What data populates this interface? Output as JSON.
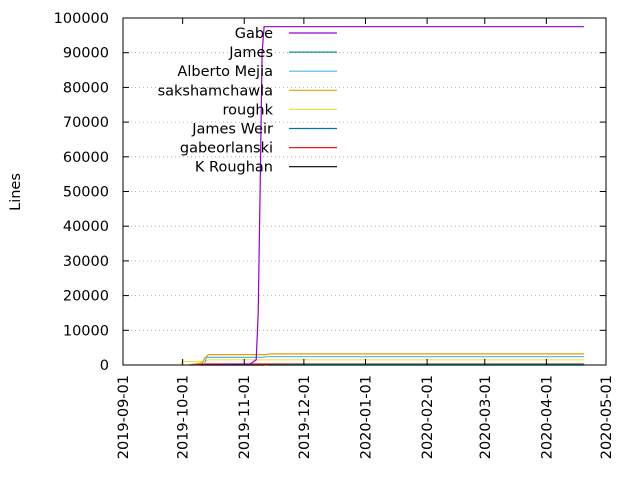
{
  "chart_data": {
    "type": "line",
    "xlabel": "",
    "ylabel": "Lines",
    "ylim": [
      0,
      100000
    ],
    "xlim": [
      "2019-09-01",
      "2020-05-01"
    ],
    "yticks": [
      0,
      10000,
      20000,
      30000,
      40000,
      50000,
      60000,
      70000,
      80000,
      90000,
      100000
    ],
    "xticks": [
      "2019-09-01",
      "2019-10-01",
      "2019-11-01",
      "2019-12-01",
      "2020-01-01",
      "2020-02-01",
      "2020-03-01",
      "2020-04-01",
      "2020-05-01"
    ],
    "grid": "horizontal-dotted",
    "legend_position": "top-left-inside",
    "series": [
      {
        "name": "Gabe",
        "color": "#9400d3",
        "x": [
          "2019-10-05",
          "2019-10-15",
          "2019-10-25",
          "2019-11-04",
          "2019-11-07",
          "2019-11-08",
          "2019-11-09",
          "2019-11-10",
          "2019-11-11",
          "2020-04-20"
        ],
        "y": [
          0,
          100,
          200,
          300,
          1500,
          15000,
          50000,
          90000,
          97500,
          97500
        ]
      },
      {
        "name": "James",
        "color": "#009e73",
        "x": [
          "2019-11-13",
          "2019-12-01",
          "2020-04-20"
        ],
        "y": [
          0,
          200,
          200
        ]
      },
      {
        "name": "Alberto Mejia",
        "color": "#56b4e9",
        "x": [
          "2019-10-12",
          "2019-10-13",
          "2019-11-10",
          "2019-11-12",
          "2020-04-20"
        ],
        "y": [
          0,
          2200,
          2200,
          2400,
          2400
        ]
      },
      {
        "name": "sakshamchawla",
        "color": "#e69f00",
        "x": [
          "2019-10-04",
          "2019-10-11",
          "2019-10-12",
          "2019-10-14",
          "2019-11-12",
          "2019-11-14",
          "2020-04-20"
        ],
        "y": [
          0,
          600,
          2000,
          3000,
          3000,
          3200,
          3200
        ]
      },
      {
        "name": "roughk",
        "color": "#f0e442",
        "x": [
          "2019-09-30",
          "2019-10-01",
          "2019-10-12",
          "2019-10-14",
          "2020-04-20"
        ],
        "y": [
          0,
          1000,
          1000,
          1500,
          1500
        ]
      },
      {
        "name": "James Weir",
        "color": "#0072b2",
        "x": [
          "2019-11-13",
          "2020-04-20"
        ],
        "y": [
          0,
          0
        ]
      },
      {
        "name": "gabeorlanski",
        "color": "#e51e10",
        "x": [
          "2019-10-06",
          "2019-10-09",
          "2019-11-11",
          "2020-04-20"
        ],
        "y": [
          0,
          300,
          300,
          300
        ]
      },
      {
        "name": "K Roughan",
        "color": "#000000",
        "x": [
          "2019-10-10",
          "2019-11-11"
        ],
        "y": [
          0,
          0
        ]
      }
    ]
  }
}
